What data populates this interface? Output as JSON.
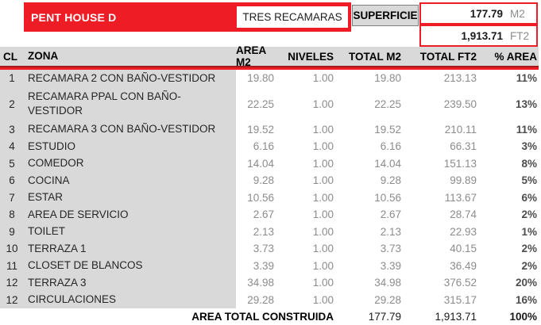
{
  "header": {
    "unit_name": "PENT HOUSE D",
    "unit_type": "TRES RECAMARAS",
    "superficie_label": "SUPERFICIE",
    "area_m2": {
      "value": "177.79",
      "unit": "M2"
    },
    "area_ft2": {
      "value": "1,913.71",
      "unit": "FT2"
    }
  },
  "table": {
    "columns": [
      "CL",
      "ZONA",
      "AREA M2",
      "NIVELES",
      "TOTAL M2",
      "TOTAL FT2",
      "% AREA"
    ],
    "rows": [
      {
        "cl": "1",
        "zona": "RECAMARA 2 CON BAÑO-VESTIDOR",
        "area_m2": "19.80",
        "niveles": "1.00",
        "total_m2": "19.80",
        "total_ft2": "213.13",
        "pct": "11%"
      },
      {
        "cl": "2",
        "zona": "RECAMARA PPAL CON BAÑO-\nVESTIDOR",
        "area_m2": "22.25",
        "niveles": "1.00",
        "total_m2": "22.25",
        "total_ft2": "239.50",
        "pct": "13%"
      },
      {
        "cl": "3",
        "zona": "RECAMARA 3 CON BAÑO-VESTIDOR",
        "area_m2": "19.52",
        "niveles": "1.00",
        "total_m2": "19.52",
        "total_ft2": "210.11",
        "pct": "11%"
      },
      {
        "cl": "4",
        "zona": "ESTUDIO",
        "area_m2": "6.16",
        "niveles": "1.00",
        "total_m2": "6.16",
        "total_ft2": "66.31",
        "pct": "3%"
      },
      {
        "cl": "5",
        "zona": "COMEDOR",
        "area_m2": "14.04",
        "niveles": "1.00",
        "total_m2": "14.04",
        "total_ft2": "151.13",
        "pct": "8%"
      },
      {
        "cl": "6",
        "zona": "COCINA",
        "area_m2": "9.28",
        "niveles": "1.00",
        "total_m2": "9.28",
        "total_ft2": "99.89",
        "pct": "5%"
      },
      {
        "cl": "7",
        "zona": "ESTAR",
        "area_m2": "10.56",
        "niveles": "1.00",
        "total_m2": "10.56",
        "total_ft2": "113.67",
        "pct": "6%"
      },
      {
        "cl": "8",
        "zona": "AREA DE SERVICIO",
        "area_m2": "2.67",
        "niveles": "1.00",
        "total_m2": "2.67",
        "total_ft2": "28.74",
        "pct": "2%"
      },
      {
        "cl": "9",
        "zona": "TOILET",
        "area_m2": "2.13",
        "niveles": "1.00",
        "total_m2": "2.13",
        "total_ft2": "22.93",
        "pct": "1%"
      },
      {
        "cl": "10",
        "zona": "TERRAZA 1",
        "area_m2": "3.73",
        "niveles": "1.00",
        "total_m2": "3.73",
        "total_ft2": "40.15",
        "pct": "2%"
      },
      {
        "cl": "11",
        "zona": "CLOSET DE BLANCOS",
        "area_m2": "3.39",
        "niveles": "1.00",
        "total_m2": "3.39",
        "total_ft2": "36.49",
        "pct": "2%"
      },
      {
        "cl": "12",
        "zona": "TERRAZA 3",
        "area_m2": "34.98",
        "niveles": "1.00",
        "total_m2": "34.98",
        "total_ft2": "376.52",
        "pct": "20%"
      },
      {
        "cl": "12",
        "zona": "CIRCULACIONES",
        "area_m2": "29.28",
        "niveles": "1.00",
        "total_m2": "29.28",
        "total_ft2": "315.17",
        "pct": "16%"
      }
    ],
    "footer": {
      "label": "AREA TOTAL CONSTRUIDA",
      "total_m2": "177.79",
      "total_ft2": "1,913.71",
      "pct": "100%"
    }
  },
  "colors": {
    "accent_red": "#EE1C25",
    "rule_dark_red": "#A31A1D",
    "gray_band": "#D9D9D9",
    "number_gray": "#8C8C8C"
  }
}
